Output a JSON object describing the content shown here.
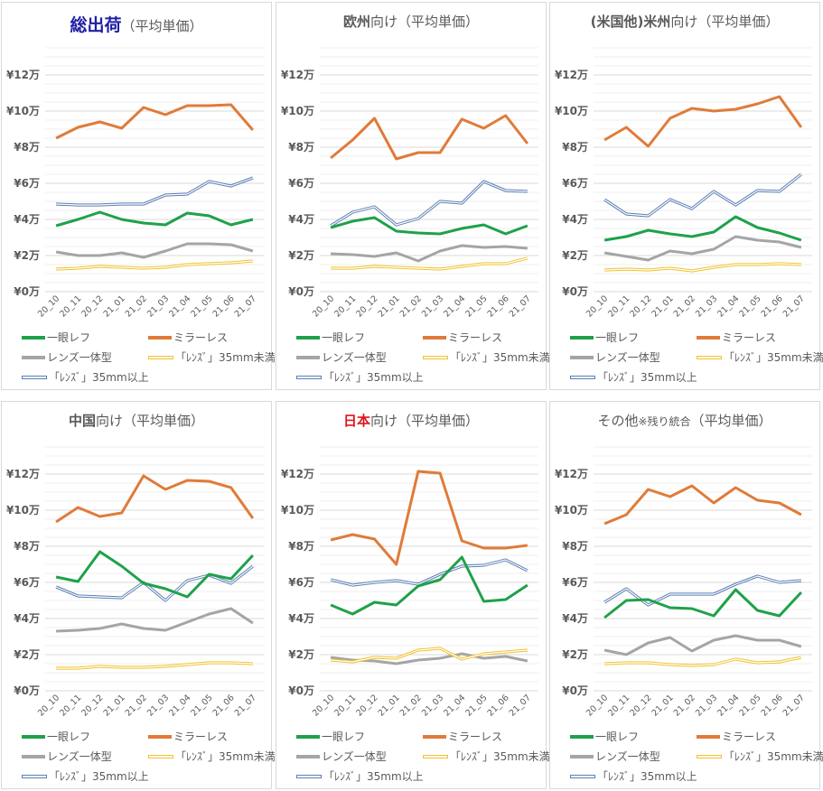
{
  "legend_labels": [
    "一眼レフ",
    "ミラーレス",
    "レンズ一体型",
    "「ﾚﾝｽﾞ」35mm未満",
    "「ﾚﾝｽﾞ」35mm以上"
  ],
  "series_colors": {
    "一眼レフ": "#1fa14a",
    "ミラーレス": "#e07b39",
    "レンズ一体型": "#a5a5a5",
    "「ﾚﾝｽﾞ」35mm未満": "#f2c12e",
    "「ﾚﾝｽﾞ」35mm以上": "#5b7fb5"
  },
  "title_colors": {
    "navy": "#1f1fa6",
    "red": "#e0141e",
    "gray": "#595959"
  },
  "chart_data": [
    {
      "type": "line",
      "title_main": "総出荷",
      "title_sub": "（平均単価）",
      "categories": [
        "20_10",
        "20_11",
        "20_12",
        "21_01",
        "21_02",
        "21_03",
        "21_04",
        "21_05",
        "21_06",
        "21_07"
      ],
      "yticks": [
        "¥0万",
        "¥2万",
        "¥4万",
        "¥6万",
        "¥8万",
        "¥10万",
        "¥12万"
      ],
      "ylabel_unit": "万円",
      "ylim": [
        0,
        13.5
      ],
      "grid": true,
      "legend_position": "bottom",
      "series": [
        {
          "name": "一眼レフ",
          "values": [
            3.65,
            4.0,
            4.4,
            4.0,
            3.8,
            3.7,
            4.35,
            4.2,
            3.7,
            4.0
          ]
        },
        {
          "name": "ミラーレス",
          "values": [
            8.5,
            9.1,
            9.4,
            9.05,
            10.2,
            9.8,
            10.3,
            10.3,
            10.35,
            8.95
          ]
        },
        {
          "name": "レンズ一体型",
          "values": [
            2.2,
            2.0,
            2.0,
            2.15,
            1.9,
            2.25,
            2.65,
            2.65,
            2.6,
            2.25
          ]
        },
        {
          "name": "「ﾚﾝｽﾞ」35mm未満",
          "values": [
            1.25,
            1.3,
            1.4,
            1.35,
            1.3,
            1.35,
            1.5,
            1.55,
            1.6,
            1.7
          ]
        },
        {
          "name": "「ﾚﾝｽﾞ」35mm以上",
          "values": [
            4.85,
            4.8,
            4.8,
            4.85,
            4.85,
            5.35,
            5.4,
            6.1,
            5.85,
            6.3
          ]
        }
      ]
    },
    {
      "type": "line",
      "title_main": "欧州",
      "title_rest": "向け",
      "title_sub": "（平均単価）",
      "categories": [
        "20_10",
        "20_11",
        "20_12",
        "21_01",
        "21_02",
        "21_03",
        "21_04",
        "21_05",
        "21_06",
        "21_07"
      ],
      "yticks": [
        "¥0万",
        "¥2万",
        "¥4万",
        "¥6万",
        "¥8万",
        "¥10万",
        "¥12万"
      ],
      "ylim": [
        0,
        13.5
      ],
      "grid": true,
      "legend_position": "bottom",
      "series": [
        {
          "name": "一眼レフ",
          "values": [
            3.55,
            3.9,
            4.1,
            3.35,
            3.25,
            3.2,
            3.5,
            3.7,
            3.2,
            3.65
          ]
        },
        {
          "name": "ミラーレス",
          "values": [
            7.4,
            8.4,
            9.6,
            7.35,
            7.7,
            7.7,
            9.55,
            9.05,
            9.75,
            8.2
          ]
        },
        {
          "name": "レンズ一体型",
          "values": [
            2.1,
            2.05,
            1.95,
            2.15,
            1.7,
            2.25,
            2.55,
            2.45,
            2.5,
            2.4
          ]
        },
        {
          "name": "「ﾚﾝｽﾞ」35mm未満",
          "values": [
            1.3,
            1.3,
            1.4,
            1.35,
            1.3,
            1.25,
            1.4,
            1.55,
            1.55,
            1.85
          ]
        },
        {
          "name": "「ﾚﾝｽﾞ」35mm以上",
          "values": [
            3.65,
            4.4,
            4.7,
            3.7,
            4.05,
            5.0,
            4.9,
            6.1,
            5.6,
            5.55
          ]
        }
      ]
    },
    {
      "type": "line",
      "title_pre": "(米国他)",
      "title_main": "米州",
      "title_rest": "向け",
      "title_sub": "（平均単価）",
      "categories": [
        "20_10",
        "20_11",
        "20_12",
        "21_01",
        "21_02",
        "21_03",
        "21_04",
        "21_05",
        "21_06",
        "21_07"
      ],
      "yticks": [
        "¥0万",
        "¥2万",
        "¥4万",
        "¥6万",
        "¥8万",
        "¥10万",
        "¥12万"
      ],
      "ylim": [
        0,
        13.5
      ],
      "grid": true,
      "legend_position": "bottom",
      "series": [
        {
          "name": "一眼レフ",
          "values": [
            2.85,
            3.05,
            3.4,
            3.2,
            3.05,
            3.3,
            4.15,
            3.55,
            3.25,
            2.85
          ]
        },
        {
          "name": "ミラーレス",
          "values": [
            8.4,
            9.1,
            8.05,
            9.6,
            10.15,
            10.0,
            10.1,
            10.4,
            10.8,
            9.1
          ]
        },
        {
          "name": "レンズ一体型",
          "values": [
            2.15,
            1.95,
            1.75,
            2.25,
            2.1,
            2.35,
            3.05,
            2.85,
            2.75,
            2.45
          ]
        },
        {
          "name": "「ﾚﾝｽﾞ」35mm未満",
          "values": [
            1.2,
            1.25,
            1.2,
            1.3,
            1.15,
            1.35,
            1.5,
            1.5,
            1.55,
            1.5
          ]
        },
        {
          "name": "「ﾚﾝｽﾞ」35mm以上",
          "values": [
            5.1,
            4.3,
            4.2,
            5.1,
            4.6,
            5.55,
            4.8,
            5.6,
            5.55,
            6.5
          ]
        }
      ]
    },
    {
      "type": "line",
      "title_main": "中国",
      "title_rest": "向け",
      "title_sub": "（平均単価）",
      "categories": [
        "20_10",
        "20_11",
        "20_12",
        "21_01",
        "21_02",
        "21_03",
        "21_04",
        "21_05",
        "21_06",
        "21_07"
      ],
      "yticks": [
        "¥0万",
        "¥2万",
        "¥4万",
        "¥6万",
        "¥8万",
        "¥10万",
        "¥12万"
      ],
      "ylim": [
        0,
        13.5
      ],
      "grid": true,
      "legend_position": "bottom",
      "series": [
        {
          "name": "一眼レフ",
          "values": [
            6.3,
            6.05,
            7.7,
            6.9,
            5.95,
            5.65,
            5.2,
            6.45,
            6.2,
            7.5
          ]
        },
        {
          "name": "ミラーレス",
          "values": [
            9.35,
            10.15,
            9.65,
            9.85,
            11.9,
            11.15,
            11.65,
            11.6,
            11.25,
            9.55
          ]
        },
        {
          "name": "レンズ一体型",
          "values": [
            3.3,
            3.35,
            3.45,
            3.7,
            3.45,
            3.35,
            3.8,
            4.25,
            4.55,
            3.75
          ]
        },
        {
          "name": "「ﾚﾝｽﾞ」35mm未満",
          "values": [
            1.25,
            1.25,
            1.35,
            1.3,
            1.3,
            1.35,
            1.45,
            1.55,
            1.55,
            1.5
          ]
        },
        {
          "name": "「ﾚﾝｽﾞ」35mm以上",
          "values": [
            5.75,
            5.25,
            5.2,
            5.15,
            6.0,
            5.0,
            6.1,
            6.4,
            5.95,
            6.9
          ]
        }
      ]
    },
    {
      "type": "line",
      "title_main": "日本",
      "title_rest": "向け",
      "title_sub": "（平均単価）",
      "categories": [
        "20_10",
        "20_11",
        "20_12",
        "21_01",
        "21_02",
        "21_03",
        "21_04",
        "21_05",
        "21_06",
        "21_07"
      ],
      "yticks": [
        "¥0万",
        "¥2万",
        "¥4万",
        "¥6万",
        "¥8万",
        "¥10万",
        "¥12万"
      ],
      "ylim": [
        0,
        13.5
      ],
      "grid": true,
      "legend_position": "bottom",
      "series": [
        {
          "name": "一眼レフ",
          "values": [
            4.75,
            4.25,
            4.9,
            4.75,
            5.8,
            6.15,
            7.4,
            4.95,
            5.05,
            5.85
          ]
        },
        {
          "name": "ミラーレス",
          "values": [
            8.35,
            8.65,
            8.4,
            7.0,
            12.15,
            12.05,
            8.3,
            7.9,
            7.9,
            8.05
          ]
        },
        {
          "name": "レンズ一体型",
          "values": [
            1.85,
            1.7,
            1.65,
            1.5,
            1.7,
            1.8,
            2.05,
            1.8,
            1.9,
            1.65
          ]
        },
        {
          "name": "「ﾚﾝｽﾞ」35mm未満",
          "values": [
            1.7,
            1.6,
            1.85,
            1.8,
            2.25,
            2.35,
            1.75,
            2.05,
            2.15,
            2.25
          ]
        },
        {
          "name": "「ﾚﾝｽﾞ」35mm以上",
          "values": [
            6.15,
            5.85,
            6.0,
            6.1,
            5.9,
            6.45,
            6.9,
            6.95,
            7.25,
            6.65
          ]
        }
      ]
    },
    {
      "type": "line",
      "title_main": "その他",
      "title_note": "※残り統合",
      "title_sub": "（平均単価）",
      "categories": [
        "20_10",
        "20_11",
        "20_12",
        "21_01",
        "21_02",
        "21_03",
        "21_04",
        "21_05",
        "21_06",
        "21_07"
      ],
      "yticks": [
        "¥0万",
        "¥2万",
        "¥4万",
        "¥6万",
        "¥8万",
        "¥10万",
        "¥12万"
      ],
      "ylim": [
        0,
        13.5
      ],
      "grid": true,
      "legend_position": "bottom",
      "series": [
        {
          "name": "一眼レフ",
          "values": [
            4.05,
            5.0,
            5.05,
            4.6,
            4.55,
            4.15,
            5.6,
            4.45,
            4.15,
            5.45
          ]
        },
        {
          "name": "ミラーレス",
          "values": [
            9.25,
            9.75,
            11.15,
            10.75,
            11.35,
            10.4,
            11.25,
            10.55,
            10.4,
            9.75
          ]
        },
        {
          "name": "レンズ一体型",
          "values": [
            2.25,
            2.0,
            2.65,
            2.95,
            2.2,
            2.8,
            3.05,
            2.8,
            2.8,
            2.45
          ]
        },
        {
          "name": "「ﾚﾝｽﾞ」35mm未満",
          "values": [
            1.5,
            1.55,
            1.55,
            1.45,
            1.4,
            1.45,
            1.75,
            1.55,
            1.6,
            1.85
          ]
        },
        {
          "name": "「ﾚﾝｽﾞ」35mm以上",
          "values": [
            4.9,
            5.65,
            4.75,
            5.35,
            5.35,
            5.35,
            5.9,
            6.35,
            6.0,
            6.1
          ]
        }
      ]
    }
  ]
}
